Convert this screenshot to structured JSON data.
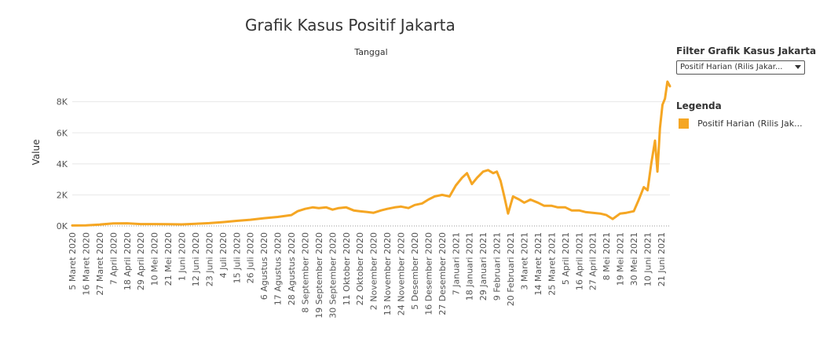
{
  "legend": {
    "title": "Legenda"
  },
  "filter": {
    "label": "Filter Grafik Kasus Jakarta",
    "value": "Positif Harian (Rilis Jakar..."
  },
  "colors": {
    "series": "#F5A623",
    "grid": "#e8e8e8",
    "baseline": "#999999",
    "text": "#555555"
  },
  "chart_data": {
    "type": "line",
    "title": "Grafik Kasus Positif Jakarta",
    "top_axis_label": "Tanggal",
    "ylabel": "Value",
    "ylim": [
      0,
      9500
    ],
    "yticks": [
      0,
      2000,
      4000,
      6000,
      8000
    ],
    "ytick_labels": [
      "0K",
      "2K",
      "4K",
      "6K",
      "8K"
    ],
    "xlim": [
      "2020-03-05",
      "2021-06-28"
    ],
    "xticks": [
      {
        "date": "2020-03-05",
        "label": "5 Maret 2020"
      },
      {
        "date": "2020-03-16",
        "label": "16 Maret 2020"
      },
      {
        "date": "2020-03-27",
        "label": "27 Maret 2020"
      },
      {
        "date": "2020-04-07",
        "label": "7 April 2020"
      },
      {
        "date": "2020-04-18",
        "label": "18 April 2020"
      },
      {
        "date": "2020-04-29",
        "label": "29 April 2020"
      },
      {
        "date": "2020-05-10",
        "label": "10 Mei 2020"
      },
      {
        "date": "2020-05-21",
        "label": "21 Mei 2020"
      },
      {
        "date": "2020-06-01",
        "label": "1 Juni 2020"
      },
      {
        "date": "2020-06-12",
        "label": "12 Juni 2020"
      },
      {
        "date": "2020-06-23",
        "label": "23 Juni 2020"
      },
      {
        "date": "2020-07-04",
        "label": "4 Juli 2020"
      },
      {
        "date": "2020-07-15",
        "label": "15 Juli 2020"
      },
      {
        "date": "2020-07-26",
        "label": "26 Juli 2020"
      },
      {
        "date": "2020-08-06",
        "label": "6 Agustus 2020"
      },
      {
        "date": "2020-08-17",
        "label": "17 Agustus 2020"
      },
      {
        "date": "2020-08-28",
        "label": "28 Agustus 2020"
      },
      {
        "date": "2020-09-08",
        "label": "8 September 2020"
      },
      {
        "date": "2020-09-19",
        "label": "19 September 2020"
      },
      {
        "date": "2020-09-30",
        "label": "30 September 2020"
      },
      {
        "date": "2020-10-11",
        "label": "11 Oktober 2020"
      },
      {
        "date": "2020-10-22",
        "label": "22 Oktober 2020"
      },
      {
        "date": "2020-11-02",
        "label": "2 November 2020"
      },
      {
        "date": "2020-11-13",
        "label": "13 November 2020"
      },
      {
        "date": "2020-11-24",
        "label": "24 November 2020"
      },
      {
        "date": "2020-12-05",
        "label": "5 Desember 2020"
      },
      {
        "date": "2020-12-16",
        "label": "16 Desember 2020"
      },
      {
        "date": "2020-12-27",
        "label": "27 Desember 2020"
      },
      {
        "date": "2021-01-07",
        "label": "7 Januari 2021"
      },
      {
        "date": "2021-01-18",
        "label": "18 Januari 2021"
      },
      {
        "date": "2021-01-29",
        "label": "29 Januari 2021"
      },
      {
        "date": "2021-02-09",
        "label": "9 Februari 2021"
      },
      {
        "date": "2021-02-20",
        "label": "20 Februari 2021"
      },
      {
        "date": "2021-03-03",
        "label": "3 Maret 2021"
      },
      {
        "date": "2021-03-14",
        "label": "14 Maret 2021"
      },
      {
        "date": "2021-03-25",
        "label": "25 Maret 2021"
      },
      {
        "date": "2021-04-05",
        "label": "5 April 2021"
      },
      {
        "date": "2021-04-16",
        "label": "16 April 2021"
      },
      {
        "date": "2021-04-27",
        "label": "27 April 2021"
      },
      {
        "date": "2021-05-08",
        "label": "8 Mei 2021"
      },
      {
        "date": "2021-05-19",
        "label": "19 Mei 2021"
      },
      {
        "date": "2021-05-30",
        "label": "30 Mei 2021"
      },
      {
        "date": "2021-06-10",
        "label": "10 Juni 2021"
      },
      {
        "date": "2021-06-21",
        "label": "21 Juni 2021"
      }
    ],
    "series": [
      {
        "name": "Positif Harian (Rilis Jak...",
        "points": [
          [
            "2020-03-05",
            30
          ],
          [
            "2020-03-16",
            40
          ],
          [
            "2020-03-27",
            90
          ],
          [
            "2020-04-07",
            160
          ],
          [
            "2020-04-18",
            170
          ],
          [
            "2020-04-29",
            120
          ],
          [
            "2020-05-10",
            120
          ],
          [
            "2020-05-21",
            110
          ],
          [
            "2020-06-01",
            100
          ],
          [
            "2020-06-12",
            140
          ],
          [
            "2020-06-23",
            180
          ],
          [
            "2020-07-04",
            250
          ],
          [
            "2020-07-15",
            330
          ],
          [
            "2020-07-26",
            400
          ],
          [
            "2020-08-06",
            500
          ],
          [
            "2020-08-17",
            580
          ],
          [
            "2020-08-28",
            700
          ],
          [
            "2020-09-02",
            950
          ],
          [
            "2020-09-08",
            1100
          ],
          [
            "2020-09-14",
            1200
          ],
          [
            "2020-09-19",
            1150
          ],
          [
            "2020-09-25",
            1200
          ],
          [
            "2020-09-30",
            1050
          ],
          [
            "2020-10-05",
            1150
          ],
          [
            "2020-10-11",
            1200
          ],
          [
            "2020-10-17",
            1000
          ],
          [
            "2020-10-22",
            950
          ],
          [
            "2020-10-28",
            900
          ],
          [
            "2020-11-02",
            850
          ],
          [
            "2020-11-08",
            1000
          ],
          [
            "2020-11-13",
            1100
          ],
          [
            "2020-11-19",
            1200
          ],
          [
            "2020-11-24",
            1250
          ],
          [
            "2020-11-30",
            1150
          ],
          [
            "2020-12-05",
            1350
          ],
          [
            "2020-12-11",
            1450
          ],
          [
            "2020-12-16",
            1700
          ],
          [
            "2020-12-21",
            1900
          ],
          [
            "2020-12-27",
            2000
          ],
          [
            "2021-01-02",
            1900
          ],
          [
            "2021-01-07",
            2600
          ],
          [
            "2021-01-12",
            3100
          ],
          [
            "2021-01-16",
            3400
          ],
          [
            "2021-01-20",
            2700
          ],
          [
            "2021-01-24",
            3100
          ],
          [
            "2021-01-29",
            3500
          ],
          [
            "2021-02-02",
            3600
          ],
          [
            "2021-02-06",
            3400
          ],
          [
            "2021-02-09",
            3500
          ],
          [
            "2021-02-12",
            2900
          ],
          [
            "2021-02-15",
            1900
          ],
          [
            "2021-02-18",
            800
          ],
          [
            "2021-02-22",
            1900
          ],
          [
            "2021-02-27",
            1700
          ],
          [
            "2021-03-03",
            1500
          ],
          [
            "2021-03-08",
            1700
          ],
          [
            "2021-03-14",
            1500
          ],
          [
            "2021-03-19",
            1300
          ],
          [
            "2021-03-25",
            1300
          ],
          [
            "2021-03-30",
            1200
          ],
          [
            "2021-04-05",
            1200
          ],
          [
            "2021-04-10",
            1000
          ],
          [
            "2021-04-16",
            1000
          ],
          [
            "2021-04-21",
            900
          ],
          [
            "2021-04-27",
            850
          ],
          [
            "2021-05-03",
            800
          ],
          [
            "2021-05-08",
            700
          ],
          [
            "2021-05-13",
            450
          ],
          [
            "2021-05-19",
            800
          ],
          [
            "2021-05-24",
            850
          ],
          [
            "2021-05-30",
            950
          ],
          [
            "2021-06-03",
            1700
          ],
          [
            "2021-06-07",
            2500
          ],
          [
            "2021-06-10",
            2300
          ],
          [
            "2021-06-13",
            4000
          ],
          [
            "2021-06-16",
            5500
          ],
          [
            "2021-06-18",
            3500
          ],
          [
            "2021-06-20",
            6300
          ],
          [
            "2021-06-22",
            7800
          ],
          [
            "2021-06-24",
            8200
          ],
          [
            "2021-06-26",
            9300
          ],
          [
            "2021-06-28",
            9000
          ]
        ]
      }
    ]
  }
}
